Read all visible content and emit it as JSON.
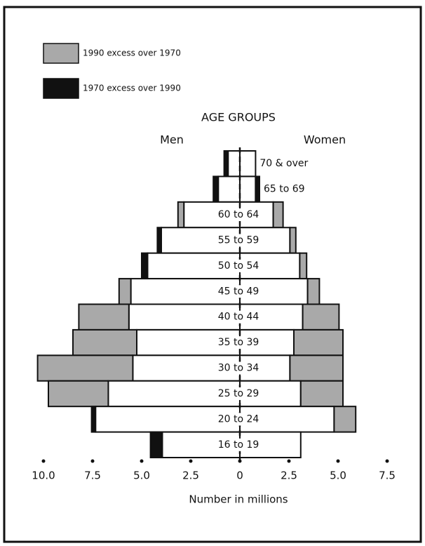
{
  "chart_data": {
    "type": "pyramid",
    "title": "AGE GROUPS",
    "xlabel": "Number in millions",
    "categories": [
      "70 & over",
      "65 to 69",
      "60 to 64",
      "55 to 59",
      "50 to 54",
      "45 to 49",
      "40 to 44",
      "35 to 39",
      "30 to 34",
      "25 to 29",
      "20 to 24",
      "16 to 19"
    ],
    "men": {
      "label": "Men",
      "v1970": [
        0.8,
        1.35,
        2.85,
        4.2,
        5.0,
        5.55,
        5.65,
        5.25,
        5.45,
        6.7,
        7.55,
        4.55
      ],
      "v1990": [
        0.6,
        1.1,
        3.15,
        4.0,
        4.7,
        6.15,
        8.2,
        8.5,
        10.3,
        9.75,
        7.35,
        3.95
      ]
    },
    "women": {
      "label": "Women",
      "v1970": [
        0.8,
        1.0,
        1.7,
        2.55,
        3.05,
        3.45,
        3.2,
        2.75,
        2.55,
        3.1,
        4.8,
        3.1
      ],
      "v1990": [
        0.8,
        0.8,
        2.2,
        2.85,
        3.4,
        4.05,
        5.05,
        5.25,
        5.25,
        5.25,
        5.9,
        3.1
      ]
    },
    "legend": [
      {
        "label": "1990 excess over 1970",
        "color": "#a9a9a9"
      },
      {
        "label": "1970 excess over 1990",
        "color": "#111111"
      }
    ],
    "base_color": "#ffffff",
    "xlim": [
      -10.0,
      7.5
    ],
    "xticks": [
      {
        "value": -10,
        "label": "10.0"
      },
      {
        "value": -7.5,
        "label": "7.5"
      },
      {
        "value": -5,
        "label": "5.0"
      },
      {
        "value": -2.5,
        "label": "2.5"
      },
      0,
      {
        "value": 2.5,
        "label": "2.5"
      },
      {
        "value": 5,
        "label": "5.0"
      },
      {
        "value": 7.5,
        "label": "7.5"
      }
    ]
  }
}
